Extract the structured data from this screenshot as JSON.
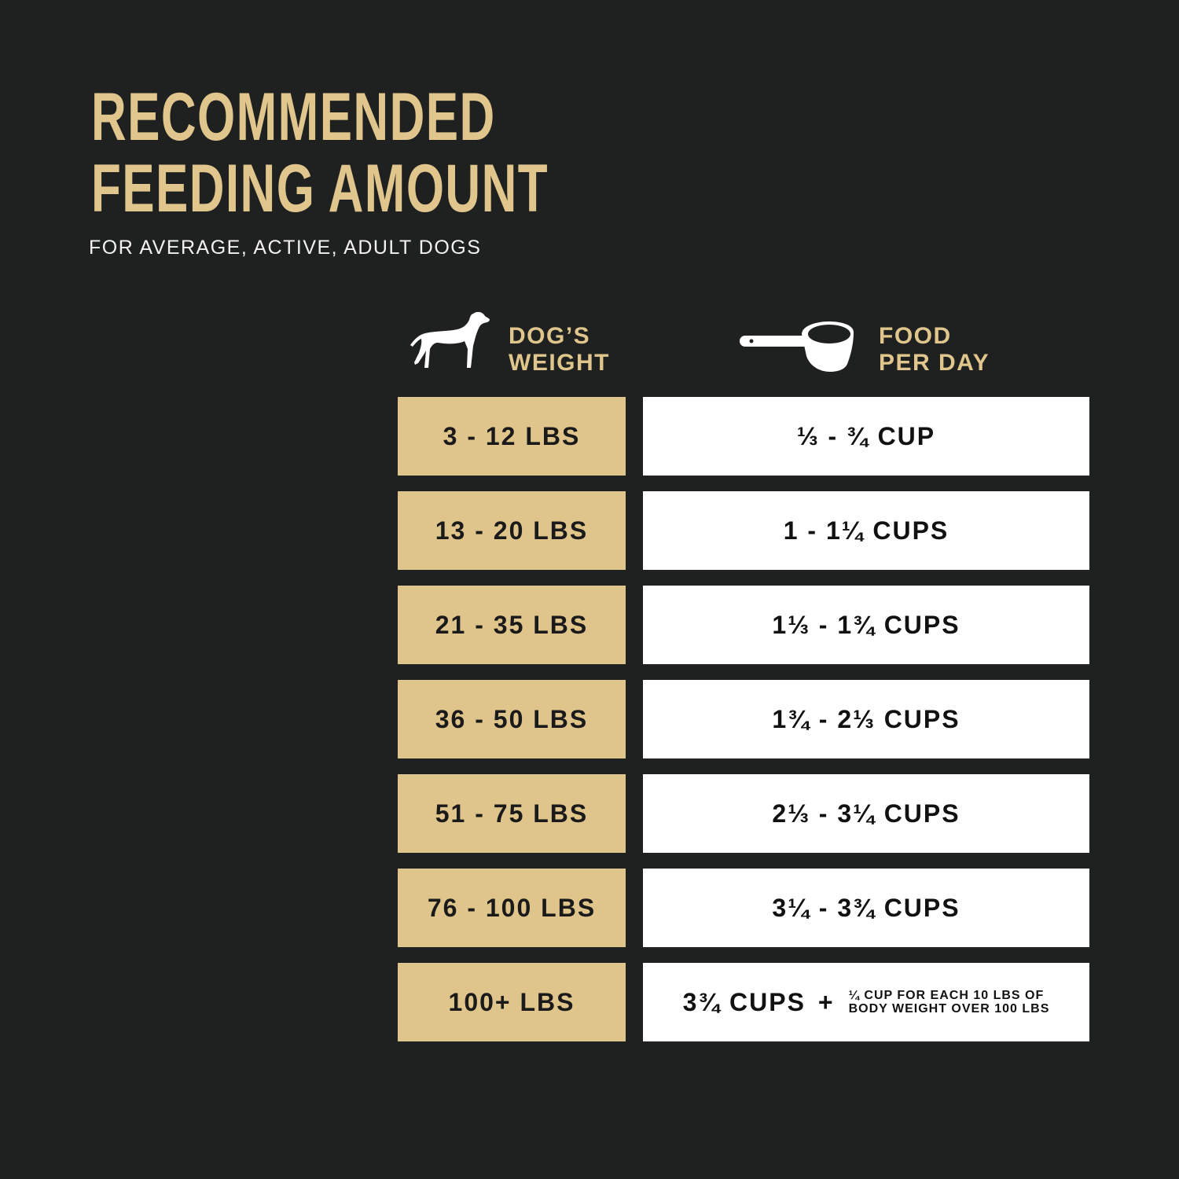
{
  "title": {
    "line1": "RECOMMENDED",
    "line2": "FEEDING AMOUNT"
  },
  "subtitle": "FOR AVERAGE, ACTIVE, ADULT DOGS",
  "colors": {
    "background": "#1f2120",
    "gold": "#dfc48b",
    "white": "#ffffff"
  },
  "headers": {
    "weight": {
      "icon": "dog-icon",
      "line1": "DOG’S",
      "line2": "WEIGHT"
    },
    "food": {
      "icon": "measuring-cup-icon",
      "line1": "FOOD",
      "line2": "PER DAY"
    }
  },
  "rows": [
    {
      "weight": "3 - 12 LBS",
      "food": "⅓ - ¾ CUP"
    },
    {
      "weight": "13 - 20 LBS",
      "food": "1 - 1¼ CUPS"
    },
    {
      "weight": "21 - 35 LBS",
      "food": "1⅓ - 1¾ CUPS"
    },
    {
      "weight": "36 - 50 LBS",
      "food": "1¾ - 2⅓ CUPS"
    },
    {
      "weight": "51 - 75 LBS",
      "food": "2⅓ - 3¼ CUPS"
    },
    {
      "weight": "76 - 100 LBS",
      "food": "3¼ - 3¾ CUPS"
    },
    {
      "weight": "100+ LBS",
      "food": "3¾ CUPS",
      "plus": "+",
      "note_line1": "¼ CUP FOR EACH 10 LBS OF",
      "note_line2": "BODY WEIGHT OVER 100 LBS"
    }
  ]
}
